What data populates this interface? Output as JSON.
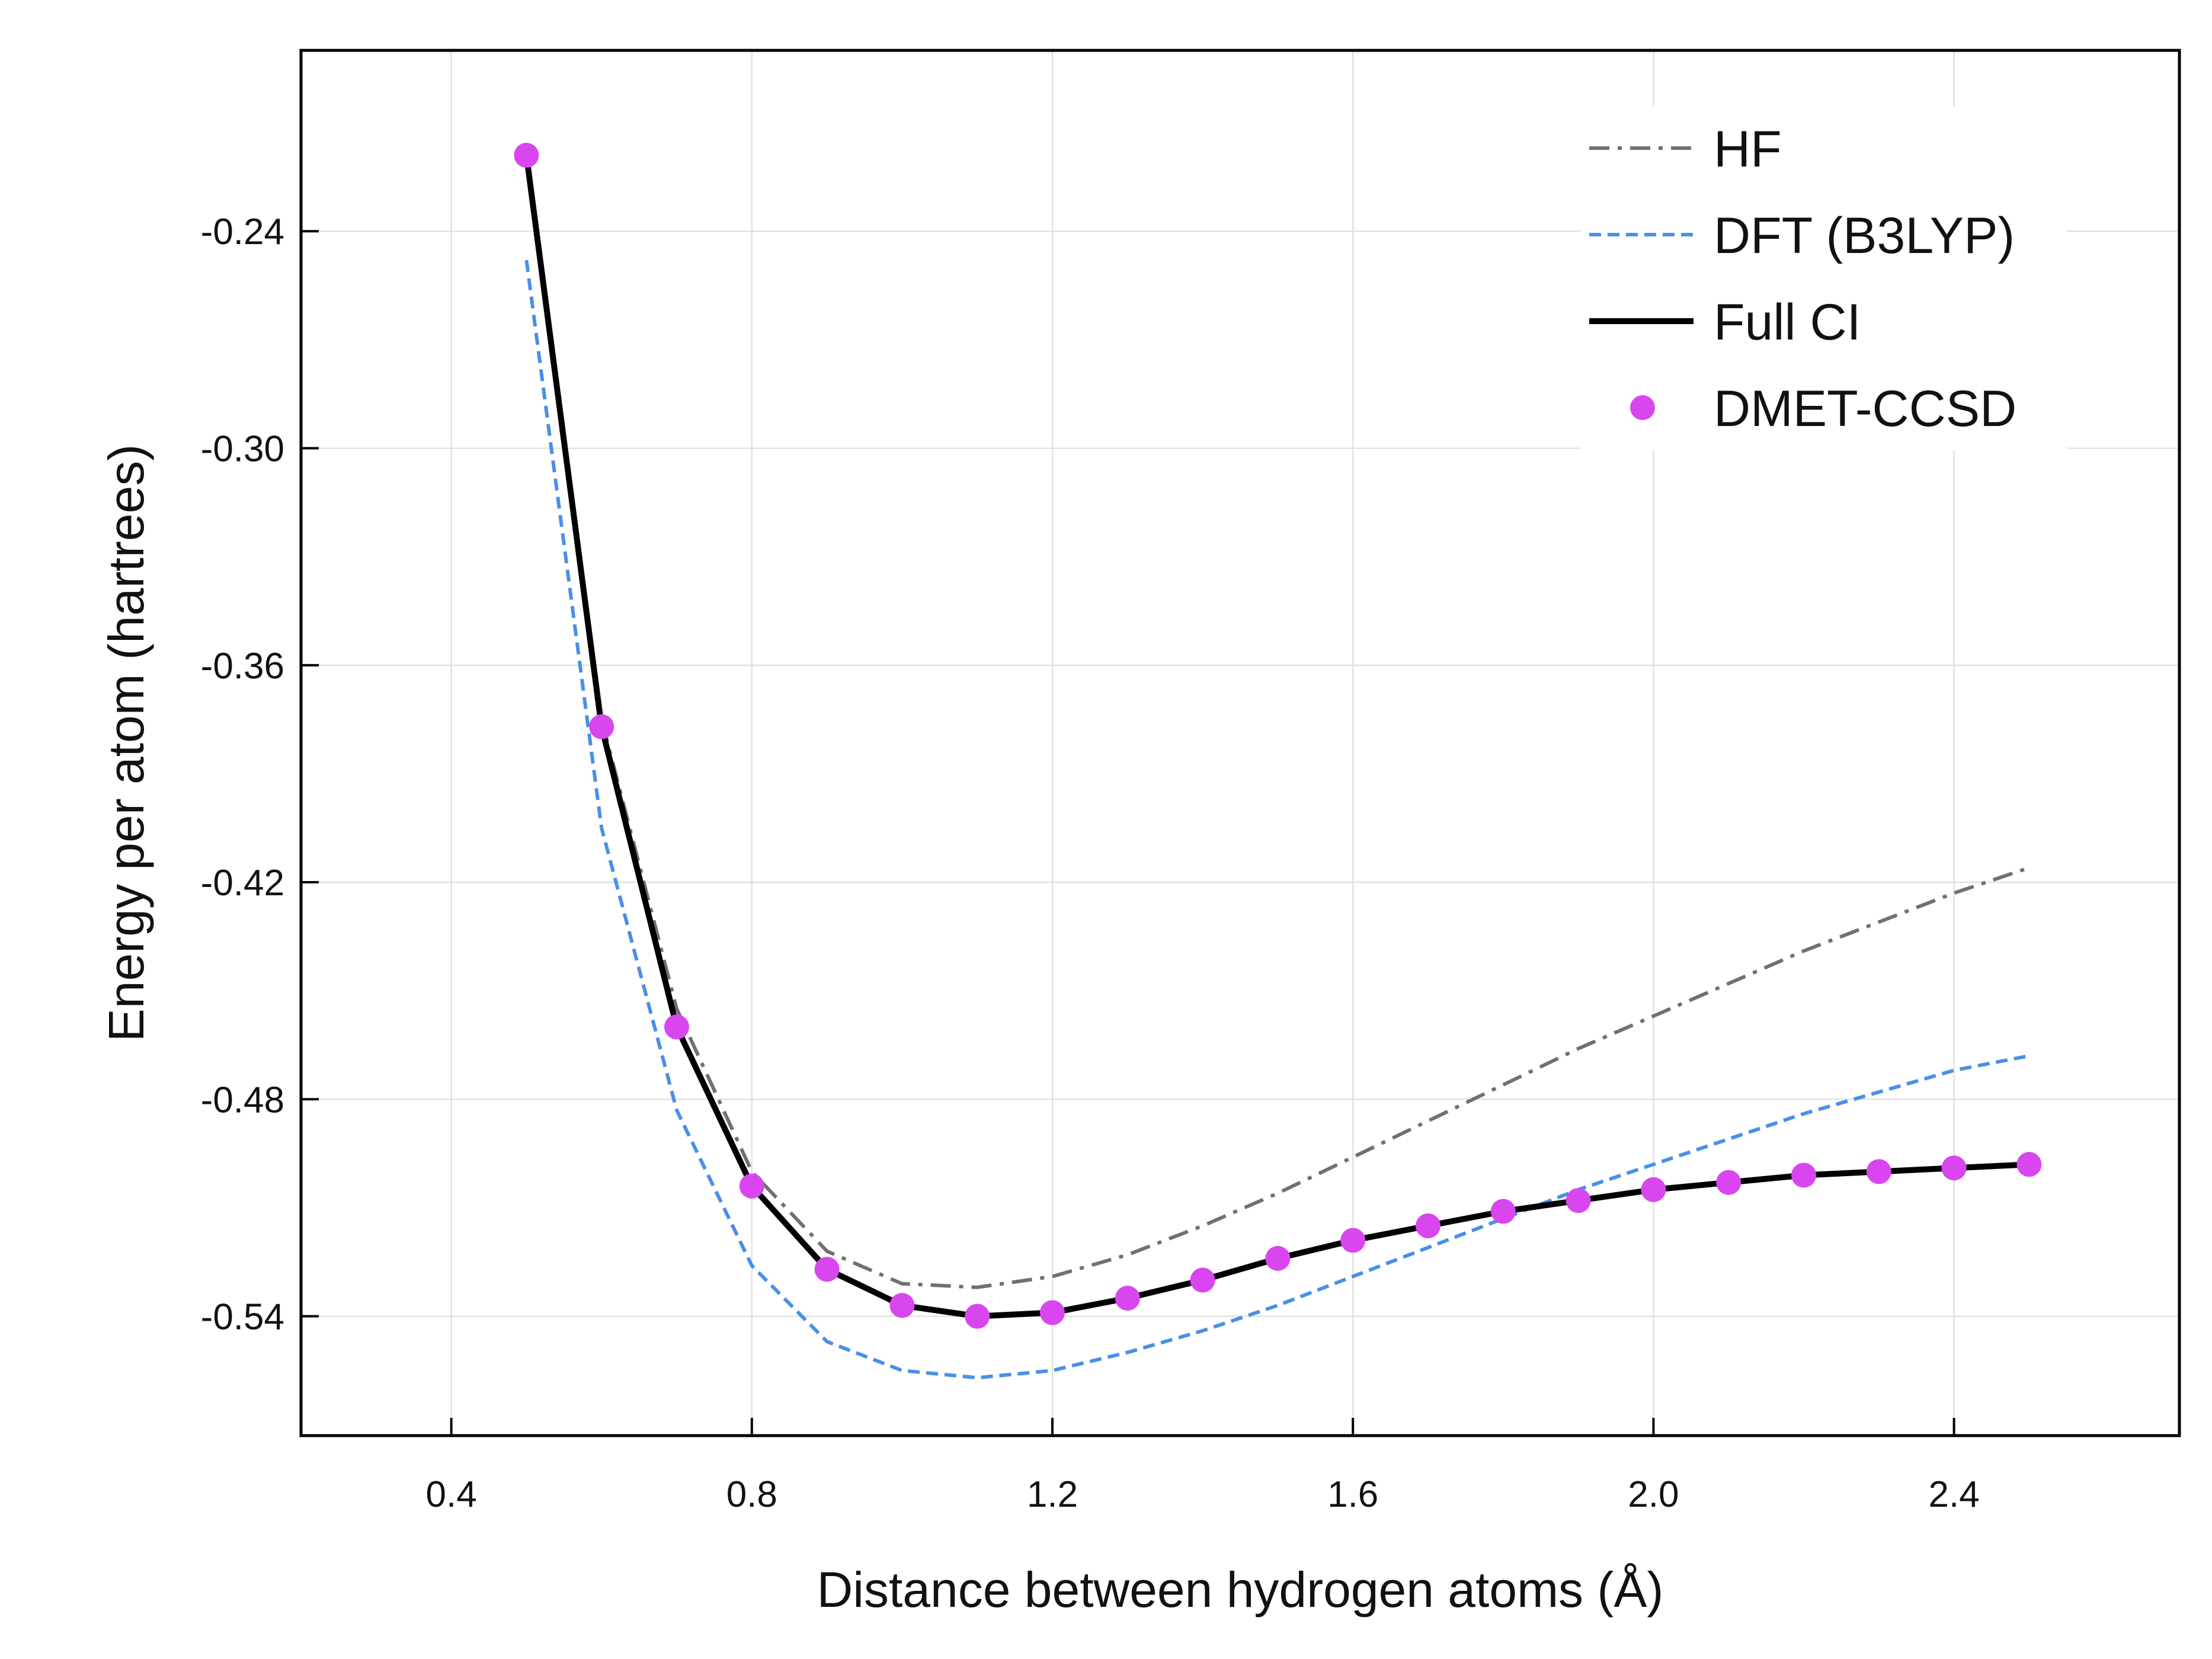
{
  "chart_data": {
    "type": "line",
    "title": "",
    "xlabel": "Distance between hydrogen atoms (Å)",
    "ylabel": "Energy per atom (hartrees)",
    "xlim": [
      0.2,
      2.7
    ],
    "ylim": [
      -0.573,
      -0.19
    ],
    "xticks": [
      0.4,
      0.8,
      1.2,
      1.6,
      2.0,
      2.4
    ],
    "yticks": [
      -0.24,
      -0.3,
      -0.36,
      -0.42,
      -0.48,
      -0.54
    ],
    "xtick_labels": [
      "0.4",
      "0.8",
      "1.2",
      "1.6",
      "2.0",
      "2.4"
    ],
    "ytick_labels": [
      "-0.24",
      "-0.30",
      "-0.36",
      "-0.42",
      "-0.48",
      "-0.54"
    ],
    "grid": true,
    "legend_position": "top-right",
    "x": [
      0.5,
      0.6,
      0.7,
      0.8,
      0.9,
      1.0,
      1.1,
      1.2,
      1.3,
      1.4,
      1.5,
      1.6,
      1.7,
      1.8,
      1.9,
      2.0,
      2.1,
      2.2,
      2.3,
      2.4,
      2.5
    ],
    "series": [
      {
        "name": "HF",
        "style": "dashdot",
        "color": "#707070",
        "values": [
          -0.219,
          -0.375,
          -0.455,
          -0.5,
          -0.522,
          -0.531,
          -0.532,
          -0.529,
          -0.523,
          -0.515,
          -0.506,
          -0.496,
          -0.486,
          -0.476,
          -0.466,
          -0.457,
          -0.448,
          -0.439,
          -0.431,
          -0.423,
          -0.416
        ]
      },
      {
        "name": "DFT (B3LYP)",
        "style": "dashed",
        "color": "#4a8fe8",
        "values": [
          -0.248,
          -0.405,
          -0.483,
          -0.526,
          -0.547,
          -0.555,
          -0.557,
          -0.555,
          -0.55,
          -0.544,
          -0.537,
          -0.529,
          -0.521,
          -0.513,
          -0.505,
          -0.498,
          -0.491,
          -0.484,
          -0.478,
          -0.472,
          -0.468
        ]
      },
      {
        "name": "Full CI",
        "style": "solid",
        "color": "#000000",
        "values": [
          -0.219,
          -0.377,
          -0.46,
          -0.504,
          -0.527,
          -0.537,
          -0.54,
          -0.539,
          -0.535,
          -0.53,
          -0.524,
          -0.519,
          -0.515,
          -0.511,
          -0.508,
          -0.505,
          -0.503,
          -0.501,
          -0.5,
          -0.499,
          -0.498
        ]
      },
      {
        "name": "DMET-CCSD",
        "style": "markers",
        "color": "#d946ef",
        "values": [
          -0.219,
          -0.377,
          -0.46,
          -0.504,
          -0.527,
          -0.537,
          -0.54,
          -0.539,
          -0.535,
          -0.53,
          -0.524,
          -0.519,
          -0.515,
          -0.511,
          -0.508,
          -0.505,
          -0.503,
          -0.501,
          -0.5,
          -0.499,
          -0.498
        ]
      }
    ]
  }
}
